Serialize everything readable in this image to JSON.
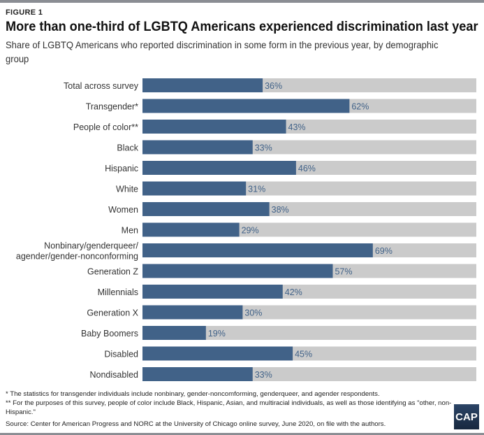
{
  "figure_label": "FIGURE 1",
  "chart_data": {
    "type": "bar",
    "orientation": "horizontal",
    "title": "More than one-third of LGBTQ Americans experienced discrimination last year",
    "subtitle": "Share of LGBTQ Americans who reported discrimination in some form in the previous year, by demographic group",
    "categories": [
      [
        "Total across survey"
      ],
      [
        "Transgender*"
      ],
      [
        "People of color**"
      ],
      [
        "Black"
      ],
      [
        "Hispanic"
      ],
      [
        "White"
      ],
      [
        "Women"
      ],
      [
        "Men"
      ],
      [
        "Nonbinary/genderqueer/",
        "agender/gender-nonconforming"
      ],
      [
        "Generation Z"
      ],
      [
        "Millennials"
      ],
      [
        "Generation X"
      ],
      [
        "Baby Boomers"
      ],
      [
        "Disabled"
      ],
      [
        "Nondisabled"
      ]
    ],
    "values": [
      36,
      62,
      43,
      33,
      46,
      31,
      38,
      29,
      69,
      57,
      42,
      30,
      19,
      45,
      33
    ],
    "data_labels": [
      "36%",
      "62%",
      "43%",
      "33%",
      "46%",
      "31%",
      "38%",
      "29%",
      "69%",
      "57%",
      "42%",
      "30%",
      "19%",
      "45%",
      "33%"
    ],
    "xlim": [
      0,
      100
    ],
    "colors": {
      "bar": "#416288",
      "track": "#cbcbcb",
      "label": "#416288"
    }
  },
  "notes": [
    "* The statistics for transgender individuals include nonbinary, gender-noncomforming, genderqueer, and agender respondents.",
    "** For the purposes of this survey, people of color include Black, Hispanic, Asian, and multiracial individuals, as well as those identifying as \"other, non-Hispanic.\""
  ],
  "source": "Source: Center for American Progress and NORC at the University of Chicago online survey, June 2020, on file with the authors.",
  "logo": "CAP"
}
